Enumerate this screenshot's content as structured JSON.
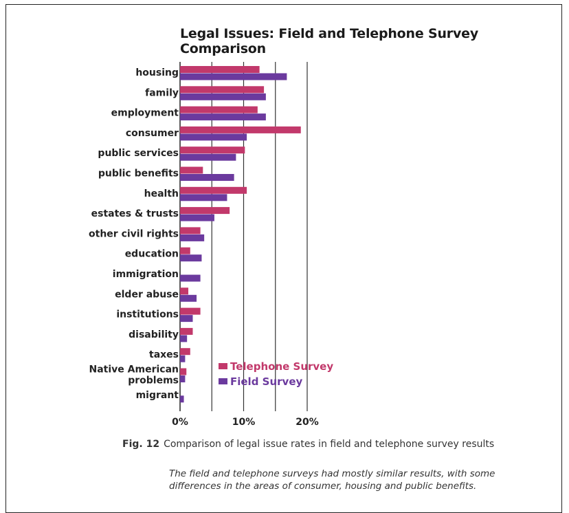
{
  "caption": {
    "fig_label": "Fig. 12",
    "text": "Comparison of legal issue rates in field and telephone survey results",
    "note": "The field and telephone surveys had mostly similar results, with some differences in the areas of consumer, housing and public benefits."
  },
  "colors": {
    "telephone": "#c2396b",
    "field": "#6b3a9e",
    "grid": "#333333"
  },
  "chart_data": {
    "type": "bar",
    "orientation": "horizontal",
    "title": "Legal Issues: Field and Telephone Survey Comparison",
    "title_lines": [
      "Legal Issues: Field and Telephone Survey",
      "Comparison"
    ],
    "categories": [
      "housing",
      "family",
      "employment",
      "consumer",
      "public services",
      "public benefits",
      "health",
      "estates & trusts",
      "other civil rights",
      "education",
      "immigration",
      "elder abuse",
      "institutions",
      "disability",
      "taxes",
      "Native American problems",
      "migrant"
    ],
    "category_lines": [
      [
        "housing"
      ],
      [
        "family"
      ],
      [
        "employment"
      ],
      [
        "consumer"
      ],
      [
        "public services"
      ],
      [
        "public benefits"
      ],
      [
        "health"
      ],
      [
        "estates & trusts"
      ],
      [
        "other civil rights"
      ],
      [
        "education"
      ],
      [
        "immigration"
      ],
      [
        "elder abuse"
      ],
      [
        "institutions"
      ],
      [
        "disability"
      ],
      [
        "taxes"
      ],
      [
        "Native American",
        "problems"
      ],
      [
        "migrant"
      ]
    ],
    "series": [
      {
        "name": "Telephone Survey",
        "values": [
          12.5,
          13.2,
          12.2,
          19.0,
          10.2,
          3.6,
          10.5,
          7.8,
          3.2,
          1.6,
          0,
          1.3,
          3.2,
          2.0,
          1.6,
          1.0,
          0
        ]
      },
      {
        "name": "Field Survey",
        "values": [
          16.8,
          13.5,
          13.5,
          10.5,
          8.8,
          8.5,
          7.4,
          5.4,
          3.8,
          3.4,
          3.2,
          2.6,
          2.0,
          1.1,
          0.8,
          0.8,
          0.6
        ]
      }
    ],
    "x_ticks": [
      "0%",
      "10%",
      "20%"
    ],
    "x_tick_values": [
      0,
      10,
      20
    ],
    "xlim": [
      0,
      20
    ],
    "grid": true,
    "legend_position": "bottom-right"
  }
}
